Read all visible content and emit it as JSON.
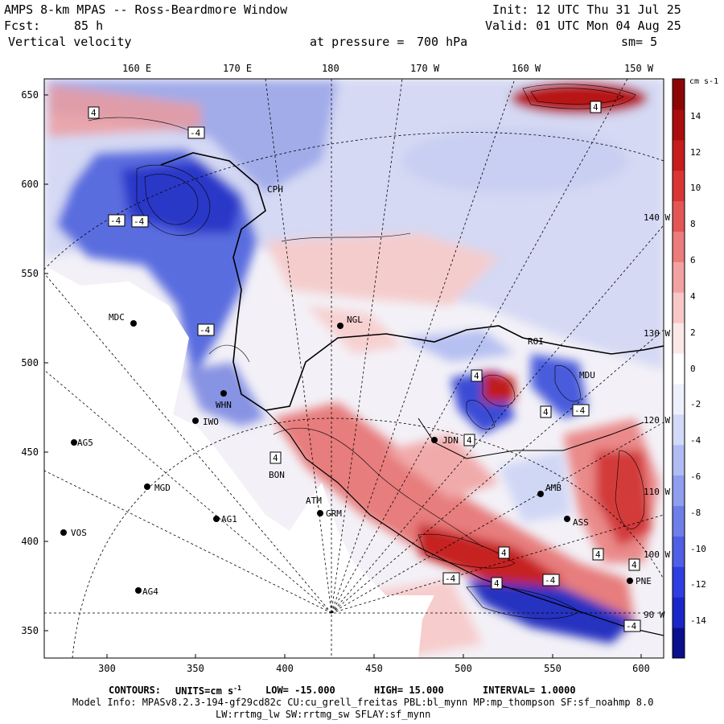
{
  "header": {
    "title": "AMPS 8-km MPAS -- Ross-Beardmore Window",
    "init": "Init: 12 UTC Thu 31 Jul 25",
    "forecast_label": "Fcst:",
    "forecast_hours": "85 h",
    "valid": "Valid: 01 UTC Mon 04 Aug 25",
    "variable": "Vertical velocity",
    "pressure_label": "at pressure =",
    "pressure_value": "700 hPa",
    "smoothing": "sm= 5"
  },
  "axes": {
    "top_ticks": [
      "160 E",
      "170 E",
      "180",
      "170 W",
      "160 W",
      "150 W"
    ],
    "left_ticks": [
      "650",
      "600",
      "550",
      "500",
      "450",
      "400",
      "350"
    ],
    "bottom_ticks": [
      "300",
      "350",
      "400",
      "450",
      "500",
      "550",
      "600"
    ],
    "right_lon_labels": [
      "140 W",
      "130 W",
      "120 W",
      "110 W",
      "100 W",
      "90 W"
    ]
  },
  "colorbar": {
    "units": "cm s-1",
    "labels": [
      "14",
      "12",
      "10",
      "8",
      "6",
      "4",
      "2",
      "0",
      "-2",
      "-4",
      "-6",
      "-8",
      "-10",
      "-12",
      "-14"
    ],
    "colors": [
      "#0a0f8c",
      "#1a26c8",
      "#2f3ee0",
      "#4f5fe6",
      "#6f7fe9",
      "#8f9eee",
      "#b0bcf3",
      "#d3daf8",
      "#eef1fc",
      "#ffffff",
      "#fde8e8",
      "#f8c7c7",
      "#f2a2a2",
      "#ec7c7c",
      "#e45656",
      "#d93535",
      "#c61c1c",
      "#aa0d0d",
      "#8c0606"
    ]
  },
  "stations": [
    {
      "code": "MDC"
    },
    {
      "code": "WHN"
    },
    {
      "code": "IWO"
    },
    {
      "code": "AG5"
    },
    {
      "code": "MGD"
    },
    {
      "code": "AG1"
    },
    {
      "code": "VOS"
    },
    {
      "code": "AG4"
    },
    {
      "code": "GRM"
    },
    {
      "code": "ATM"
    },
    {
      "code": "BON"
    },
    {
      "code": "NGL"
    },
    {
      "code": "CPH"
    },
    {
      "code": "JDN"
    },
    {
      "code": "MDU"
    },
    {
      "code": "AMB"
    },
    {
      "code": "ASS"
    },
    {
      "code": "PNE"
    },
    {
      "code": "ROI"
    }
  ],
  "contour_boxes": [
    "4",
    "-4",
    "-4",
    "-4",
    "-4",
    "4",
    "4",
    "4",
    "4",
    "-4",
    "4",
    "4",
    "-4",
    "4",
    "4",
    "-4",
    "4",
    "-4"
  ],
  "footer": {
    "contours_label": "CONTOURS:",
    "units_label": "UNITS=cm s",
    "units_exp": "-1",
    "low": "LOW= -15.000",
    "high": "HIGH= 15.000",
    "interval": "INTERVAL= 1.0000",
    "model_info": "Model Info: MPASv8.2.3-194-gf29cd82c CU:cu_grell_freitas PBL:bl_mynn MP:mp_thompson SF:sf_noahmp 8.0",
    "model_info2": "LW:rrtmg_lw SW:rrtmg_sw SFLAY:sf_mynn"
  }
}
